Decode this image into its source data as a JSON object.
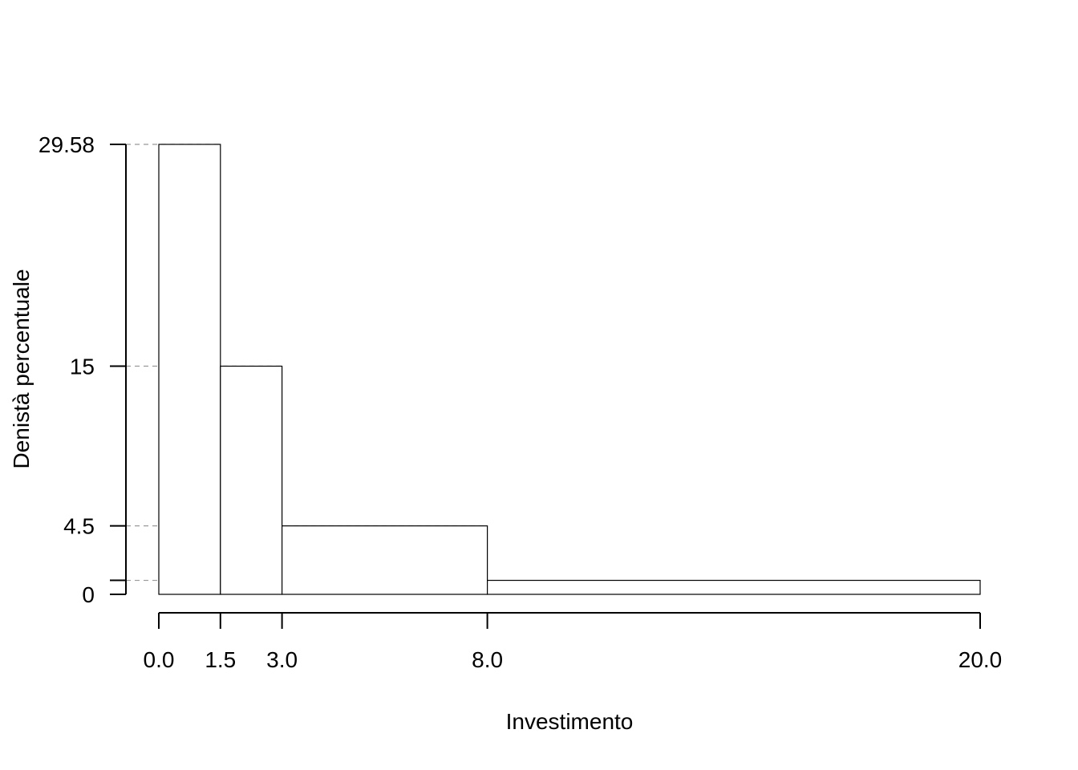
{
  "chart_data": {
    "type": "bar",
    "title": "",
    "xlabel": "Investimento",
    "ylabel": "Denistà percentuale",
    "bins": [
      {
        "from": 0.0,
        "to": 1.5,
        "density": 29.58
      },
      {
        "from": 1.5,
        "to": 3.0,
        "density": 15
      },
      {
        "from": 3.0,
        "to": 8.0,
        "density": 4.5
      },
      {
        "from": 8.0,
        "to": 20.0,
        "density": 0.92
      }
    ],
    "xlim": [
      0,
      20
    ],
    "ylim": [
      0,
      29.58
    ],
    "x_ticks": [
      {
        "value": 0.0,
        "label": "0.0"
      },
      {
        "value": 1.5,
        "label": "1.5"
      },
      {
        "value": 3.0,
        "label": "3.0"
      },
      {
        "value": 8.0,
        "label": "8.0"
      },
      {
        "value": 20.0,
        "label": "20.0"
      }
    ],
    "y_ticks": [
      {
        "value": 0,
        "label": "0"
      },
      {
        "value": 0.92,
        "label": ""
      },
      {
        "value": 4.5,
        "label": "4.5"
      },
      {
        "value": 15,
        "label": "15"
      },
      {
        "value": 29.58,
        "label": "29.58"
      }
    ],
    "reference_lines": "dashed gray at each bar height",
    "grid": false,
    "legend": "none",
    "colors": {
      "bar_fill": "#ffffff",
      "bar_stroke": "#000000",
      "reference_line": "#999999",
      "axis": "#000000"
    }
  }
}
